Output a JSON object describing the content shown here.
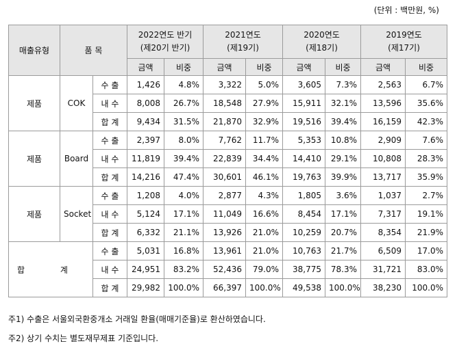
{
  "unit_note": "(단위 : 백만원, %)",
  "headers": {
    "type": "매출유형",
    "item": "품 목",
    "periods": [
      {
        "year": "2022연도 반기",
        "term": "(제20기 반기)"
      },
      {
        "year": "2021연도",
        "term": "(제19기)"
      },
      {
        "year": "2020연도",
        "term": "(제18기)"
      },
      {
        "year": "2019연도",
        "term": "(제17기)"
      }
    ],
    "amount": "금액",
    "ratio": "비중"
  },
  "groups": [
    {
      "category": "제품",
      "item": "COK",
      "rows": [
        {
          "type": "수 출",
          "values": [
            "1,426",
            "4.8%",
            "3,322",
            "5.0%",
            "3,605",
            "7.3%",
            "2,563",
            "6.7%"
          ]
        },
        {
          "type": "내 수",
          "values": [
            "8,008",
            "26.7%",
            "18,548",
            "27.9%",
            "15,911",
            "32.1%",
            "13,596",
            "35.6%"
          ]
        },
        {
          "type": "합 계",
          "values": [
            "9,434",
            "31.5%",
            "21,870",
            "32.9%",
            "19,516",
            "39.4%",
            "16,159",
            "42.3%"
          ]
        }
      ]
    },
    {
      "category": "제품",
      "item": "Board",
      "rows": [
        {
          "type": "수 출",
          "values": [
            "2,397",
            "8.0%",
            "7,762",
            "11.7%",
            "5,353",
            "10.8%",
            "2,909",
            "7.6%"
          ]
        },
        {
          "type": "내 수",
          "values": [
            "11,819",
            "39.4%",
            "22,839",
            "34.4%",
            "14,410",
            "29.1%",
            "10,808",
            "28.3%"
          ]
        },
        {
          "type": "합 계",
          "values": [
            "14,216",
            "47.4%",
            "30,601",
            "46.1%",
            "19,763",
            "39.9%",
            "13,717",
            "35.9%"
          ]
        }
      ]
    },
    {
      "category": "제품",
      "item": "Socket",
      "rows": [
        {
          "type": "수 출",
          "values": [
            "1,208",
            "4.0%",
            "2,877",
            "4.3%",
            "1,805",
            "3.6%",
            "1,037",
            "2.7%"
          ]
        },
        {
          "type": "내 수",
          "values": [
            "5,124",
            "17.1%",
            "11,049",
            "16.6%",
            "8,454",
            "17.1%",
            "7,317",
            "19.1%"
          ]
        },
        {
          "type": "합 계",
          "values": [
            "6,332",
            "21.1%",
            "13,926",
            "21.0%",
            "10,259",
            "20.7%",
            "8,354",
            "21.9%"
          ]
        }
      ]
    }
  ],
  "total": {
    "label": "합 계",
    "rows": [
      {
        "type": "수 출",
        "values": [
          "5,031",
          "16.8%",
          "13,961",
          "21.0%",
          "10,763",
          "21.7%",
          "6,509",
          "17.0%"
        ]
      },
      {
        "type": "내 수",
        "values": [
          "24,951",
          "83.2%",
          "52,436",
          "79.0%",
          "38,775",
          "78.3%",
          "31,721",
          "83.0%"
        ]
      },
      {
        "type": "합 계",
        "values": [
          "29,982",
          "100.0%",
          "66,397",
          "100.0%",
          "49,538",
          "100.0%",
          "38,230",
          "100.0%"
        ]
      }
    ]
  },
  "notes": [
    "주1) 수출은 서울외국환중개소 거래일 환율(매매기준율)로 환산하였습니다.",
    "주2) 상기 수치는 별도재무제표 기준입니다."
  ]
}
